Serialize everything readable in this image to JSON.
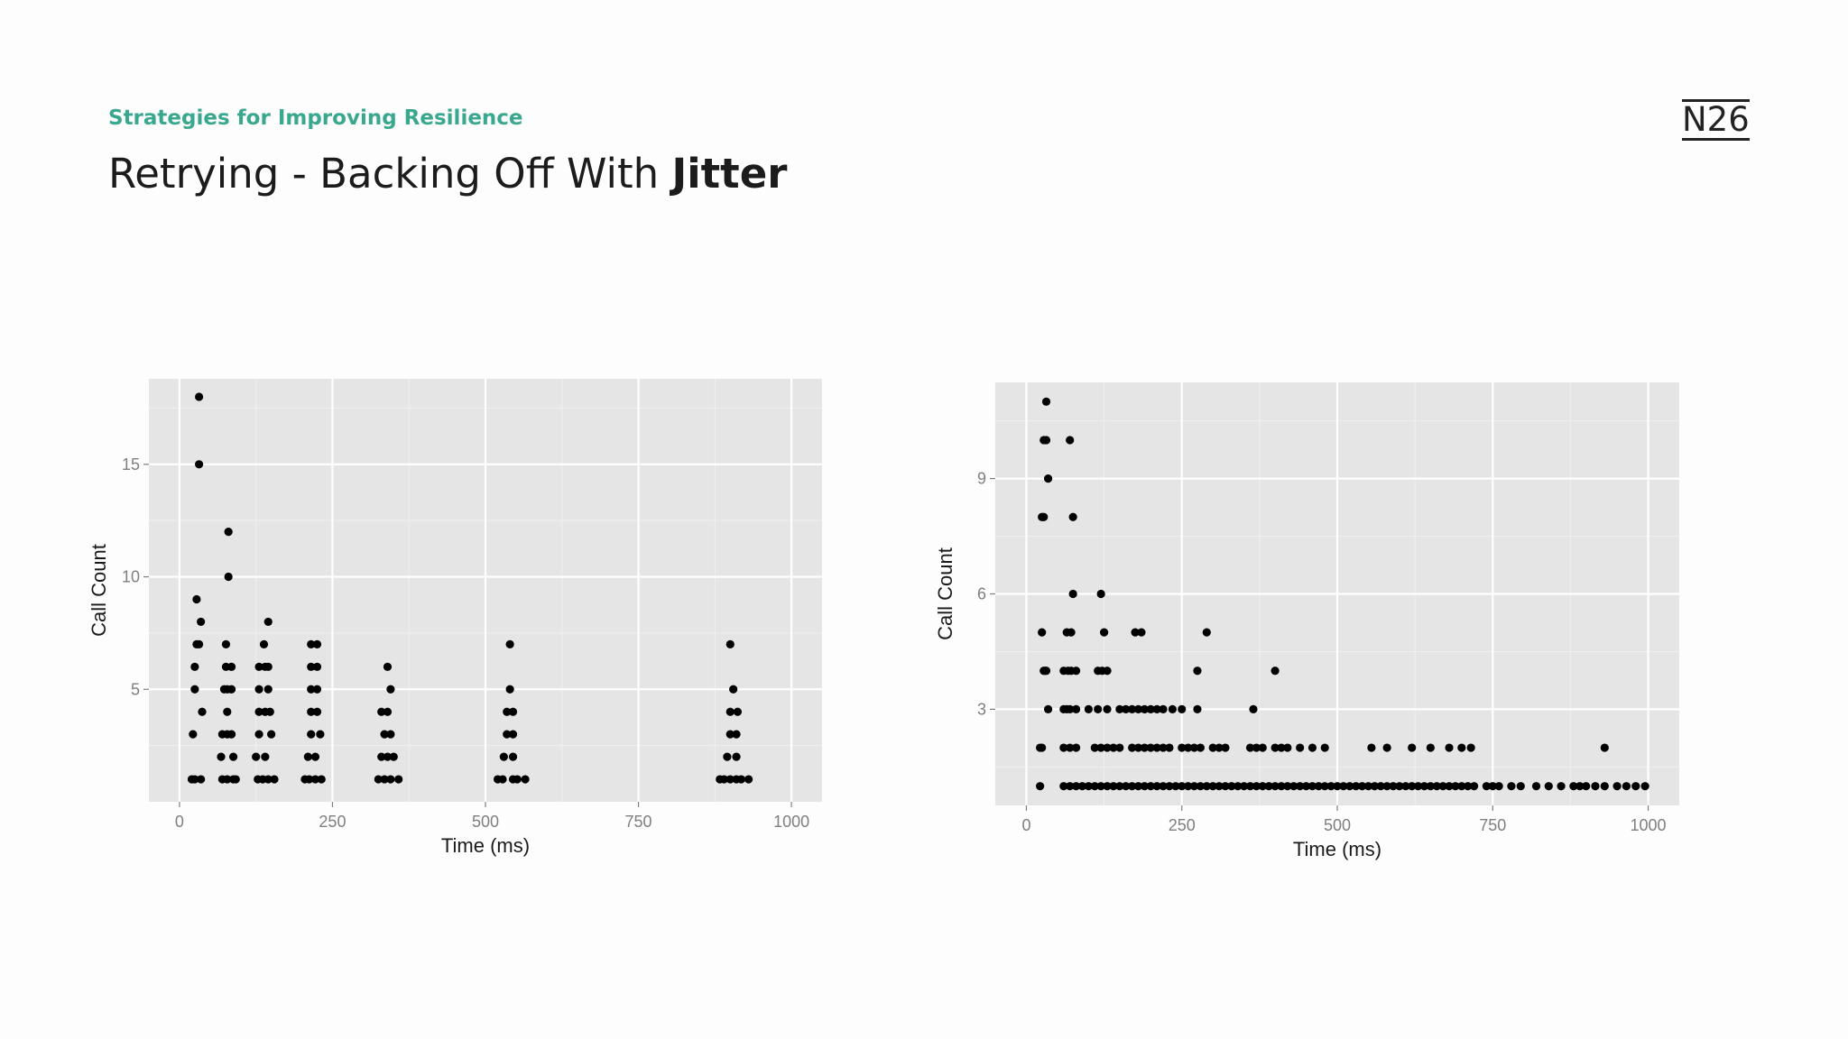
{
  "header": {
    "subtitle": "Strategies for Improving Resilience",
    "title_plain": "Retrying - Backing Off With ",
    "title_bold": "Jitter",
    "logo_text": "N26",
    "subtitle_color": "#3aa88f"
  },
  "chart_data": [
    {
      "type": "scatter",
      "title": "",
      "xlabel": "Time (ms)",
      "ylabel": "Call Count",
      "xlim": [
        -50,
        1050
      ],
      "ylim": [
        0,
        18.8
      ],
      "xticks": [
        0,
        250,
        500,
        750,
        1000
      ],
      "yticks": [
        5,
        10,
        15
      ],
      "grid": true,
      "panel_color": "#e5e5e5",
      "point_color": "#000000",
      "points": [
        [
          20,
          1
        ],
        [
          25,
          1
        ],
        [
          35,
          1
        ],
        [
          22,
          3
        ],
        [
          25,
          5
        ],
        [
          25,
          6
        ],
        [
          28,
          7
        ],
        [
          32,
          7
        ],
        [
          28,
          9
        ],
        [
          32,
          15
        ],
        [
          32,
          18
        ],
        [
          35,
          8
        ],
        [
          37,
          4
        ],
        [
          70,
          1
        ],
        [
          78,
          1
        ],
        [
          88,
          1
        ],
        [
          92,
          1
        ],
        [
          68,
          2
        ],
        [
          88,
          2
        ],
        [
          70,
          3
        ],
        [
          78,
          3
        ],
        [
          85,
          3
        ],
        [
          78,
          4
        ],
        [
          73,
          5
        ],
        [
          78,
          5
        ],
        [
          85,
          5
        ],
        [
          76,
          6
        ],
        [
          85,
          6
        ],
        [
          76,
          7
        ],
        [
          80,
          10
        ],
        [
          80,
          12
        ],
        [
          128,
          1
        ],
        [
          136,
          1
        ],
        [
          145,
          1
        ],
        [
          155,
          1
        ],
        [
          125,
          2
        ],
        [
          140,
          2
        ],
        [
          130,
          3
        ],
        [
          150,
          3
        ],
        [
          130,
          4
        ],
        [
          140,
          4
        ],
        [
          148,
          4
        ],
        [
          130,
          5
        ],
        [
          145,
          5
        ],
        [
          130,
          6
        ],
        [
          140,
          6
        ],
        [
          145,
          6
        ],
        [
          138,
          7
        ],
        [
          145,
          8
        ],
        [
          205,
          1
        ],
        [
          212,
          1
        ],
        [
          222,
          1
        ],
        [
          232,
          1
        ],
        [
          210,
          2
        ],
        [
          222,
          2
        ],
        [
          215,
          3
        ],
        [
          230,
          3
        ],
        [
          215,
          4
        ],
        [
          225,
          4
        ],
        [
          215,
          5
        ],
        [
          225,
          5
        ],
        [
          215,
          6
        ],
        [
          225,
          6
        ],
        [
          215,
          7
        ],
        [
          225,
          7
        ],
        [
          325,
          1
        ],
        [
          335,
          1
        ],
        [
          345,
          1
        ],
        [
          358,
          1
        ],
        [
          330,
          2
        ],
        [
          340,
          2
        ],
        [
          350,
          2
        ],
        [
          335,
          3
        ],
        [
          345,
          3
        ],
        [
          330,
          4
        ],
        [
          340,
          4
        ],
        [
          345,
          5
        ],
        [
          340,
          6
        ],
        [
          520,
          1
        ],
        [
          528,
          1
        ],
        [
          545,
          1
        ],
        [
          552,
          1
        ],
        [
          565,
          1
        ],
        [
          530,
          2
        ],
        [
          545,
          2
        ],
        [
          535,
          3
        ],
        [
          545,
          3
        ],
        [
          535,
          4
        ],
        [
          545,
          4
        ],
        [
          540,
          5
        ],
        [
          540,
          7
        ],
        [
          883,
          1
        ],
        [
          890,
          1
        ],
        [
          900,
          1
        ],
        [
          910,
          1
        ],
        [
          918,
          1
        ],
        [
          930,
          1
        ],
        [
          895,
          2
        ],
        [
          910,
          2
        ],
        [
          900,
          3
        ],
        [
          910,
          3
        ],
        [
          900,
          4
        ],
        [
          912,
          4
        ],
        [
          905,
          5
        ],
        [
          900,
          7
        ]
      ]
    },
    {
      "type": "scatter",
      "title": "",
      "xlabel": "Time (ms)",
      "ylabel": "Call Count",
      "xlim": [
        -50,
        1050
      ],
      "ylim": [
        0.5,
        11.5
      ],
      "xticks": [
        0,
        250,
        500,
        750,
        1000
      ],
      "yticks": [
        3,
        6,
        9
      ],
      "grid": true,
      "panel_color": "#e5e5e5",
      "point_color": "#000000",
      "points": [
        [
          22,
          1
        ],
        [
          22,
          2
        ],
        [
          25,
          2
        ],
        [
          25,
          5
        ],
        [
          25,
          8
        ],
        [
          28,
          8
        ],
        [
          28,
          4
        ],
        [
          30,
          4
        ],
        [
          32,
          4
        ],
        [
          28,
          10
        ],
        [
          32,
          10
        ],
        [
          32,
          11
        ],
        [
          35,
          9
        ],
        [
          35,
          3
        ],
        [
          60,
          1
        ],
        [
          70,
          1
        ],
        [
          80,
          1
        ],
        [
          90,
          1
        ],
        [
          100,
          1
        ],
        [
          110,
          1
        ],
        [
          120,
          1
        ],
        [
          130,
          1
        ],
        [
          140,
          1
        ],
        [
          150,
          1
        ],
        [
          160,
          1
        ],
        [
          170,
          1
        ],
        [
          180,
          1
        ],
        [
          190,
          1
        ],
        [
          200,
          1
        ],
        [
          210,
          1
        ],
        [
          220,
          1
        ],
        [
          230,
          1
        ],
        [
          240,
          1
        ],
        [
          250,
          1
        ],
        [
          260,
          1
        ],
        [
          270,
          1
        ],
        [
          280,
          1
        ],
        [
          290,
          1
        ],
        [
          300,
          1
        ],
        [
          310,
          1
        ],
        [
          320,
          1
        ],
        [
          330,
          1
        ],
        [
          340,
          1
        ],
        [
          350,
          1
        ],
        [
          360,
          1
        ],
        [
          370,
          1
        ],
        [
          380,
          1
        ],
        [
          390,
          1
        ],
        [
          400,
          1
        ],
        [
          410,
          1
        ],
        [
          420,
          1
        ],
        [
          430,
          1
        ],
        [
          440,
          1
        ],
        [
          450,
          1
        ],
        [
          460,
          1
        ],
        [
          470,
          1
        ],
        [
          480,
          1
        ],
        [
          490,
          1
        ],
        [
          500,
          1
        ],
        [
          510,
          1
        ],
        [
          520,
          1
        ],
        [
          530,
          1
        ],
        [
          540,
          1
        ],
        [
          550,
          1
        ],
        [
          560,
          1
        ],
        [
          570,
          1
        ],
        [
          580,
          1
        ],
        [
          590,
          1
        ],
        [
          600,
          1
        ],
        [
          610,
          1
        ],
        [
          620,
          1
        ],
        [
          630,
          1
        ],
        [
          640,
          1
        ],
        [
          650,
          1
        ],
        [
          660,
          1
        ],
        [
          670,
          1
        ],
        [
          680,
          1
        ],
        [
          690,
          1
        ],
        [
          700,
          1
        ],
        [
          710,
          1
        ],
        [
          720,
          1
        ],
        [
          740,
          1
        ],
        [
          750,
          1
        ],
        [
          760,
          1
        ],
        [
          780,
          1
        ],
        [
          795,
          1
        ],
        [
          820,
          1
        ],
        [
          840,
          1
        ],
        [
          860,
          1
        ],
        [
          880,
          1
        ],
        [
          890,
          1
        ],
        [
          900,
          1
        ],
        [
          915,
          1
        ],
        [
          930,
          1
        ],
        [
          950,
          1
        ],
        [
          965,
          1
        ],
        [
          980,
          1
        ],
        [
          995,
          1
        ],
        [
          60,
          2
        ],
        [
          70,
          2
        ],
        [
          80,
          2
        ],
        [
          110,
          2
        ],
        [
          120,
          2
        ],
        [
          130,
          2
        ],
        [
          140,
          2
        ],
        [
          150,
          2
        ],
        [
          170,
          2
        ],
        [
          180,
          2
        ],
        [
          190,
          2
        ],
        [
          200,
          2
        ],
        [
          210,
          2
        ],
        [
          220,
          2
        ],
        [
          230,
          2
        ],
        [
          250,
          2
        ],
        [
          260,
          2
        ],
        [
          270,
          2
        ],
        [
          280,
          2
        ],
        [
          300,
          2
        ],
        [
          310,
          2
        ],
        [
          320,
          2
        ],
        [
          360,
          2
        ],
        [
          370,
          2
        ],
        [
          380,
          2
        ],
        [
          400,
          2
        ],
        [
          410,
          2
        ],
        [
          420,
          2
        ],
        [
          440,
          2
        ],
        [
          460,
          2
        ],
        [
          480,
          2
        ],
        [
          555,
          2
        ],
        [
          580,
          2
        ],
        [
          620,
          2
        ],
        [
          650,
          2
        ],
        [
          680,
          2
        ],
        [
          700,
          2
        ],
        [
          715,
          2
        ],
        [
          930,
          2
        ],
        [
          60,
          3
        ],
        [
          65,
          3
        ],
        [
          70,
          3
        ],
        [
          80,
          3
        ],
        [
          100,
          3
        ],
        [
          115,
          3
        ],
        [
          130,
          3
        ],
        [
          150,
          3
        ],
        [
          160,
          3
        ],
        [
          170,
          3
        ],
        [
          180,
          3
        ],
        [
          190,
          3
        ],
        [
          200,
          3
        ],
        [
          210,
          3
        ],
        [
          220,
          3
        ],
        [
          235,
          3
        ],
        [
          250,
          3
        ],
        [
          275,
          3
        ],
        [
          365,
          3
        ],
        [
          60,
          4
        ],
        [
          67,
          4
        ],
        [
          72,
          4
        ],
        [
          80,
          4
        ],
        [
          115,
          4
        ],
        [
          122,
          4
        ],
        [
          130,
          4
        ],
        [
          275,
          4
        ],
        [
          400,
          4
        ],
        [
          65,
          5
        ],
        [
          72,
          5
        ],
        [
          125,
          5
        ],
        [
          175,
          5
        ],
        [
          185,
          5
        ],
        [
          290,
          5
        ],
        [
          75,
          6
        ],
        [
          120,
          6
        ],
        [
          75,
          8
        ],
        [
          70,
          10
        ]
      ]
    }
  ]
}
